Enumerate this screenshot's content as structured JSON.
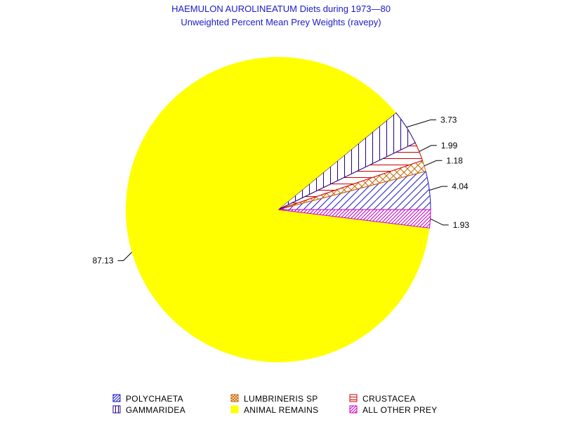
{
  "chart_data": {
    "type": "pie",
    "title": "HAEMULON AUROLINEATUM Diets during 1973—80",
    "subtitle": "Unweighted Percent Mean Prey Weights (ravepy)",
    "slices": [
      {
        "name": "POLYCHAETA",
        "value": 4.04,
        "label": "4.04",
        "color": "#1a1acc",
        "pattern": "diag-down"
      },
      {
        "name": "LUMBRINERIS SP",
        "value": 1.18,
        "label": "1.18",
        "color": "#cc6600",
        "pattern": "cross"
      },
      {
        "name": "CRUSTACEA",
        "value": 1.99,
        "label": "1.99",
        "color": "#cc0000",
        "pattern": "horizontal"
      },
      {
        "name": "GAMMARIDEA",
        "value": 3.73,
        "label": "3.73",
        "color": "#220088",
        "pattern": "vertical"
      },
      {
        "name": "ANIMAL REMAINS",
        "value": 87.13,
        "label": "87.13",
        "color": "#ffff00",
        "pattern": "solid"
      },
      {
        "name": "ALL OTHER PREY",
        "value": 1.93,
        "label": "1.93",
        "color": "#cc00cc",
        "pattern": "diag-down-dense"
      }
    ],
    "legend_placement": "bottom",
    "legend_order": [
      "POLYCHAETA",
      "LUMBRINERIS SP",
      "CRUSTACEA",
      "GAMMARIDEA",
      "ANIMAL REMAINS",
      "ALL OTHER PREY"
    ]
  }
}
